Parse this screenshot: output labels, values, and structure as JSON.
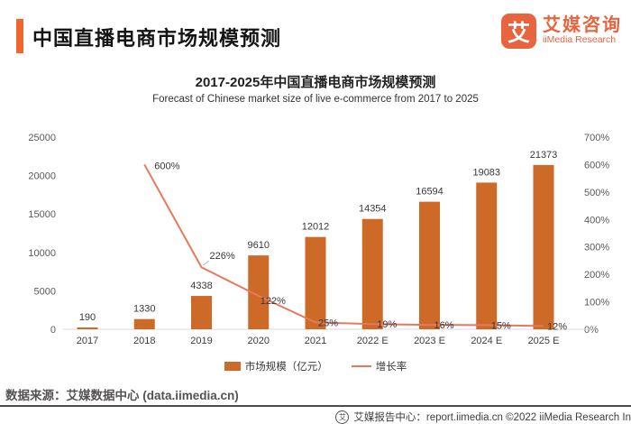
{
  "header": {
    "title": "中国直播电商市场规模预测"
  },
  "logo": {
    "mark": "艾",
    "name_cn": "艾媒咨询",
    "name_en": "iiMedia Research",
    "color": "#E8643E"
  },
  "chart_data": {
    "type": "bar",
    "title": "2017-2025年中国直播电商市场规模预测",
    "subtitle": "Forecast of Chinese market size of live e-commerce from 2017 to 2025",
    "categories": [
      "2017",
      "2018",
      "2019",
      "2020",
      "2021",
      "2022 E",
      "2023 E",
      "2024 E",
      "2025 E"
    ],
    "series": [
      {
        "name": "市场规模（亿元）",
        "type": "bar",
        "axis": "left",
        "color": "#CE6A28",
        "values": [
          190,
          1330,
          4338,
          9610,
          12012,
          14354,
          16594,
          19083,
          21373
        ]
      },
      {
        "name": "增长率",
        "type": "line",
        "axis": "right",
        "color": "#E5795B",
        "suffix": "%",
        "values": [
          null,
          600,
          226,
          122,
          25,
          19,
          16,
          15,
          12
        ]
      }
    ],
    "left_axis": {
      "min": 0,
      "max": 25000,
      "step": 5000,
      "ticks": [
        "0",
        "5000",
        "10000",
        "15000",
        "20000",
        "25000"
      ]
    },
    "right_axis": {
      "min": 0,
      "max": 700,
      "step": 100,
      "ticks": [
        "0%",
        "100%",
        "200%",
        "300%",
        "400%",
        "500%",
        "600%",
        "700%"
      ]
    },
    "grid": false,
    "legend_position": "bottom",
    "data_labels": true
  },
  "source": {
    "text": "数据来源：艾媒数据中心 (data.iimedia.cn)"
  },
  "footer": {
    "text": "艾媒报告中心：report.iimedia.cn  ©2022  iiMedia Research In"
  },
  "icons": {
    "footer_mark": "艾"
  }
}
